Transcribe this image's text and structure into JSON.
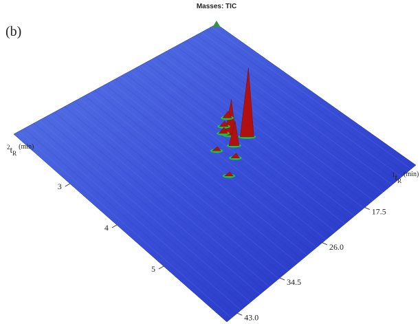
{
  "panel_label": "(b)",
  "chart_data": {
    "type": "surface3d",
    "title": "Masses: TIC",
    "x_label": {
      "superscript": "1",
      "symbol": "t",
      "subscript": "R",
      "unit": "(min)"
    },
    "y_label": {
      "superscript": "2",
      "symbol": "t",
      "subscript": "R",
      "unit": "(min)"
    },
    "xlim": [
      7.3,
      45.1
    ],
    "xticks": [
      17.5,
      {
        "value": 26.0,
        "label": "26.0"
      },
      34.5,
      {
        "value": 43.0,
        "label": "43.0"
      }
    ],
    "ylim": [
      1.8,
      6.35
    ],
    "yticks": [
      3,
      4,
      5
    ],
    "zlim": [
      0,
      100
    ],
    "surface_color": "#2f3fd0",
    "peak_color": "#b01010",
    "base_color": "#20c040",
    "peaks": {
      "x": [
        20,
        21.5,
        22.5,
        19.5,
        21,
        22,
        24,
        25,
        27
      ],
      "y": [
        4.0,
        3.8,
        4.0,
        3.5,
        3.6,
        3.7,
        4.2,
        3.9,
        4.4
      ],
      "z": [
        100,
        52,
        36,
        10,
        8,
        9,
        7,
        6,
        6
      ]
    }
  }
}
